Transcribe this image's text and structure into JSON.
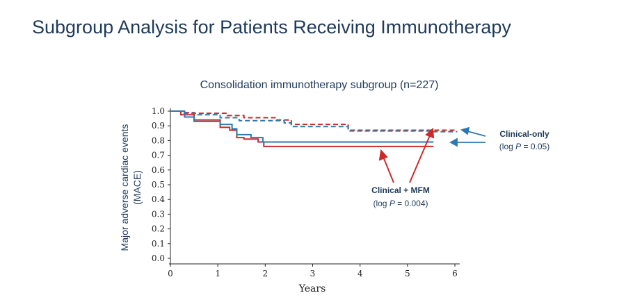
{
  "slide": {
    "title": "Subgroup Analysis for Patients Receiving Immunotherapy"
  },
  "chart_data": {
    "type": "line",
    "step": true,
    "title": "Consolidation immunotherapy subgroup (n=227)",
    "xlabel": "Years",
    "ylabel_lines": [
      "Major adverse cardiac events",
      "(MACE)"
    ],
    "xlim": [
      0,
      6.1
    ],
    "ylim": [
      0,
      1.0
    ],
    "xticks": [
      0,
      1,
      2,
      3,
      4,
      5,
      6
    ],
    "yticks": [
      0.0,
      0.1,
      0.2,
      0.3,
      0.4,
      0.5,
      0.6,
      0.7,
      0.8,
      0.9,
      1.0
    ],
    "grid": false,
    "colors": {
      "red": "#cc2a2a",
      "blue": "#2e78b0",
      "annotation": "#1f3a5a"
    },
    "series": [
      {
        "color": "#cc2a2a",
        "dash": true,
        "x": [
          0,
          0.22,
          0.5,
          1.2,
          1.55,
          2.25,
          2.55,
          3.75,
          5.55,
          6.05
        ],
        "y": [
          1.0,
          0.99,
          0.985,
          0.97,
          0.955,
          0.94,
          0.91,
          0.87,
          0.87,
          0.87
        ]
      },
      {
        "color": "#2e78b0",
        "dash": true,
        "x": [
          0,
          0.25,
          0.5,
          1.05,
          1.45,
          2.4,
          2.55,
          3.75,
          5.55,
          6.05
        ],
        "y": [
          1.0,
          0.985,
          0.975,
          0.955,
          0.935,
          0.92,
          0.895,
          0.865,
          0.86,
          0.86
        ]
      },
      {
        "color": "#cc2a2a",
        "dash": false,
        "x": [
          0,
          0.22,
          0.5,
          1.05,
          1.25,
          1.4,
          1.55,
          1.85,
          1.97,
          5.55
        ],
        "y": [
          1.0,
          0.975,
          0.94,
          0.89,
          0.87,
          0.82,
          0.81,
          0.79,
          0.76,
          0.76
        ]
      },
      {
        "color": "#2e78b0",
        "dash": false,
        "x": [
          0,
          0.3,
          0.5,
          1.05,
          1.3,
          1.4,
          1.7,
          1.95,
          5.55
        ],
        "y": [
          1.0,
          0.96,
          0.93,
          0.91,
          0.88,
          0.84,
          0.82,
          0.79,
          0.79
        ]
      }
    ],
    "annotations": {
      "clinical_only": {
        "label": "Clinical-only",
        "stat": "(log P = 0.05)",
        "stat_prefix": "(log ",
        "stat_italic": "P",
        "stat_suffix": " = 0.05)"
      },
      "clinical_mfm": {
        "label": "Clinical + MFM",
        "stat": "(log P = 0.004)",
        "stat_prefix": "(log ",
        "stat_italic": "P",
        "stat_suffix": " = 0.004)"
      }
    }
  }
}
